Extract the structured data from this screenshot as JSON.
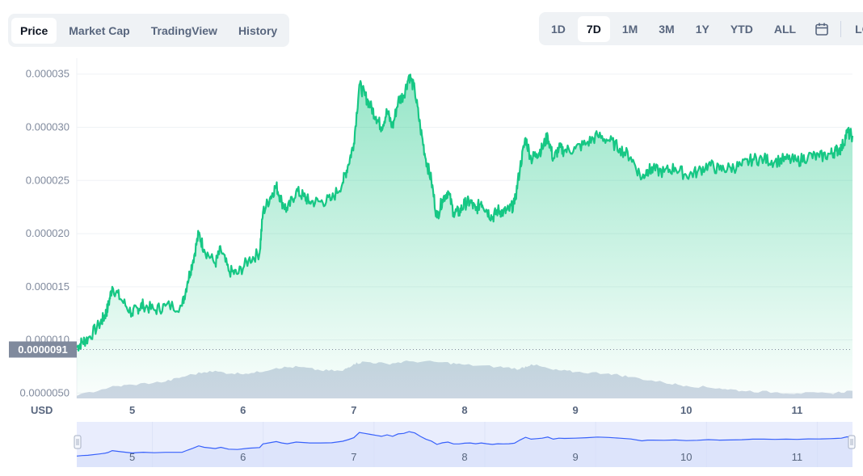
{
  "tabs": {
    "chart_type": [
      {
        "label": "Price",
        "active": true
      },
      {
        "label": "Market Cap",
        "active": false
      },
      {
        "label": "TradingView",
        "active": false
      },
      {
        "label": "History",
        "active": false
      }
    ],
    "ranges": [
      {
        "label": "1D",
        "active": false
      },
      {
        "label": "7D",
        "active": true
      },
      {
        "label": "1M",
        "active": false
      },
      {
        "label": "3M",
        "active": false
      },
      {
        "label": "1Y",
        "active": false
      },
      {
        "label": "YTD",
        "active": false
      },
      {
        "label": "ALL",
        "active": false
      }
    ],
    "log_label": "LOG",
    "calendar_icon": "calendar-icon"
  },
  "colors": {
    "price_line": "#16c784",
    "price_fill": "#16c784",
    "volume": "#cfd6e4",
    "navigator_line": "#3861fb",
    "navigator_fill": "#e9edfd",
    "grid": "#eff2f5",
    "badge": "#808a9d"
  },
  "chart_data": {
    "type": "line",
    "currency_label": "USD",
    "y_ticks": [
      "0.000035",
      "0.000030",
      "0.000025",
      "0.000020",
      "0.000015",
      "0.000010",
      "0.0000050"
    ],
    "y_tick_values": [
      3.5e-05,
      3e-05,
      2.5e-05,
      2e-05,
      1.5e-05,
      1e-05,
      5e-06
    ],
    "ylim": [
      4.5e-06,
      3.65e-05
    ],
    "x_ticks": [
      "5",
      "6",
      "7",
      "8",
      "9",
      "10",
      "11"
    ],
    "x_tick_values": [
      5,
      6,
      7,
      8,
      9,
      10,
      11
    ],
    "xlim": [
      4.5,
      11.5
    ],
    "current_price_label": "0.0000091",
    "current_price": 9.1e-06,
    "series": [
      {
        "x": [
          4.5,
          4.55,
          4.6,
          4.7,
          4.75,
          4.78,
          4.82,
          4.9,
          5.0,
          5.05,
          5.1,
          5.2,
          5.3,
          5.45,
          5.5,
          5.55,
          5.6,
          5.65,
          5.75,
          5.8,
          5.87,
          5.95,
          6.05,
          6.15,
          6.18,
          6.25,
          6.3,
          6.35,
          6.4,
          6.48,
          6.55,
          6.6,
          6.7,
          6.8,
          6.9,
          6.95,
          7.0,
          7.05,
          7.1,
          7.15,
          7.2,
          7.25,
          7.3,
          7.35,
          7.4,
          7.45,
          7.5,
          7.55,
          7.6,
          7.65,
          7.7,
          7.75,
          7.8,
          7.85,
          7.9,
          7.95,
          8.0,
          8.05,
          8.1,
          8.15,
          8.2,
          8.25,
          8.3,
          8.35,
          8.4,
          8.45,
          8.5,
          8.55,
          8.6,
          8.65,
          8.7,
          8.75,
          8.8,
          8.85,
          8.9,
          9.0,
          9.1,
          9.2,
          9.3,
          9.4,
          9.5,
          9.6,
          9.65,
          9.7,
          9.8,
          9.9,
          10.0,
          10.1,
          10.2,
          10.3,
          10.4,
          10.5,
          10.6,
          10.7,
          10.8,
          10.9,
          11.0,
          11.1,
          11.2,
          11.3,
          11.35,
          11.4,
          11.45,
          11.5
        ],
        "values": [
          9.3e-06,
          9.8e-06,
          1.01e-05,
          1.14e-05,
          1.22e-05,
          1.3e-05,
          1.5e-05,
          1.38e-05,
          1.25e-05,
          1.3e-05,
          1.33e-05,
          1.28e-05,
          1.32e-05,
          1.32e-05,
          1.55e-05,
          1.75e-05,
          2e-05,
          1.85e-05,
          1.72e-05,
          1.85e-05,
          1.65e-05,
          1.62e-05,
          1.75e-05,
          1.82e-05,
          2.2e-05,
          2.35e-05,
          2.45e-05,
          2.3e-05,
          2.22e-05,
          2.4e-05,
          2.35e-05,
          2.3e-05,
          2.3e-05,
          2.32e-05,
          2.48e-05,
          2.65e-05,
          2.85e-05,
          3.4e-05,
          3.3e-05,
          3.2e-05,
          3.1e-05,
          3e-05,
          3.15e-05,
          3e-05,
          3.25e-05,
          3.3e-05,
          3.49e-05,
          3.35e-05,
          3e-05,
          2.7e-05,
          2.5e-05,
          2.15e-05,
          2.32e-05,
          2.4e-05,
          2.2e-05,
          2.2e-05,
          2.28e-05,
          2.3e-05,
          2.22e-05,
          2.3e-05,
          2.22e-05,
          2.15e-05,
          2.22e-05,
          2.2e-05,
          2.22e-05,
          2.28e-05,
          2.62e-05,
          2.9e-05,
          2.7e-05,
          2.75e-05,
          2.8e-05,
          2.92e-05,
          2.7e-05,
          2.8e-05,
          2.78e-05,
          2.8e-05,
          2.85e-05,
          2.92e-05,
          2.88e-05,
          2.8e-05,
          2.72e-05,
          2.52e-05,
          2.6e-05,
          2.6e-05,
          2.58e-05,
          2.62e-05,
          2.55e-05,
          2.58e-05,
          2.65e-05,
          2.6e-05,
          2.62e-05,
          2.64e-05,
          2.7e-05,
          2.7e-05,
          2.68e-05,
          2.7e-05,
          2.68e-05,
          2.73e-05,
          2.72e-05,
          2.75e-05,
          2.78e-05,
          2.8e-05,
          2.95e-05,
          2.92e-05
        ]
      }
    ],
    "volume_relative": {
      "x": [
        4.5,
        4.8,
        5.0,
        5.3,
        5.5,
        5.7,
        5.9,
        6.1,
        6.3,
        6.5,
        6.7,
        6.9,
        7.0,
        7.1,
        7.3,
        7.5,
        7.8,
        8.0,
        8.3,
        8.5,
        8.6,
        8.8,
        9.0,
        9.3,
        9.5,
        9.8,
        10.0,
        10.3,
        10.5,
        10.8,
        11.0,
        11.3,
        11.5
      ],
      "values": [
        0.05,
        0.22,
        0.27,
        0.33,
        0.45,
        0.54,
        0.49,
        0.5,
        0.6,
        0.62,
        0.55,
        0.54,
        0.68,
        0.72,
        0.68,
        0.73,
        0.71,
        0.66,
        0.62,
        0.58,
        0.67,
        0.56,
        0.52,
        0.49,
        0.42,
        0.31,
        0.25,
        0.2,
        0.15,
        0.12,
        0.1,
        0.1,
        0.15
      ]
    }
  }
}
